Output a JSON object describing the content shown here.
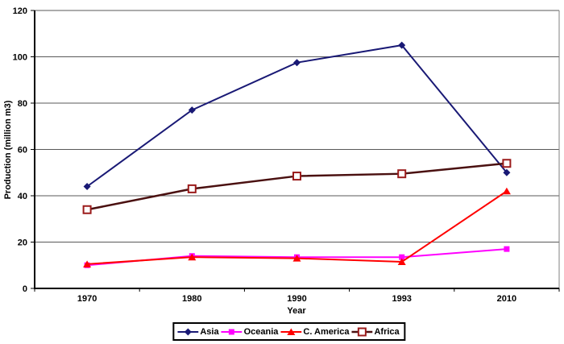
{
  "chart_data": {
    "type": "line",
    "categories": [
      "1970",
      "1980",
      "1990",
      "1993",
      "2010"
    ],
    "series": [
      {
        "name": "Asia",
        "color": "#191975",
        "marker": "diamond",
        "marker_color": "#191975",
        "values": [
          44,
          77,
          97.5,
          105,
          50
        ]
      },
      {
        "name": "Oceania",
        "color": "#FF00FF",
        "marker": "square",
        "marker_color": "#FF00FF",
        "values": [
          10,
          14,
          13.5,
          13.5,
          17
        ]
      },
      {
        "name": "C. America",
        "color": "#FF0000",
        "marker": "triangle",
        "marker_color": "#FF0000",
        "values": [
          10.5,
          13.5,
          13,
          11.5,
          42
        ]
      },
      {
        "name": "Africa",
        "color": "#4A1010",
        "marker": "open-square",
        "marker_color": "#9B1B1B",
        "values": [
          34,
          43,
          48.5,
          49.5,
          54
        ]
      }
    ],
    "title": "",
    "xlabel": "Year",
    "ylabel": "Production (million m3)",
    "ylim": [
      0,
      120
    ],
    "ytick_step": 20,
    "grid": true,
    "legend_position": "bottom",
    "colors": {
      "axis": "#000000",
      "gridline": "#595959",
      "plot_border": "#808080",
      "background": "#FFFFFF"
    }
  }
}
